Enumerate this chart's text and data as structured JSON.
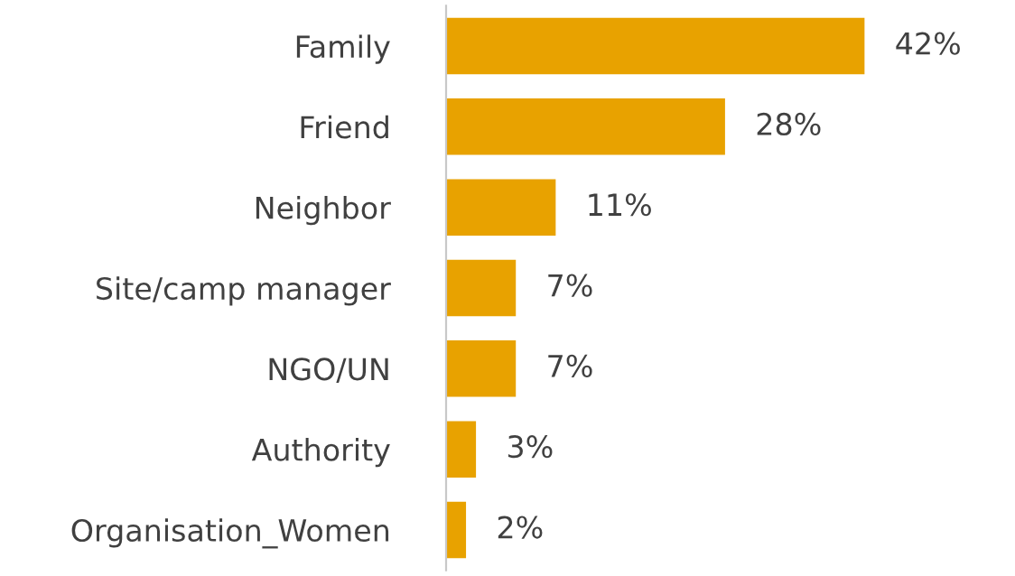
{
  "chart_data": {
    "type": "bar",
    "orientation": "horizontal",
    "categories": [
      "Family",
      "Friend",
      "Neighbor",
      "Site/camp manager",
      "NGO/UN",
      "Authority",
      "Organisation_Women"
    ],
    "values": [
      42,
      28,
      11,
      7,
      7,
      3,
      2
    ],
    "value_labels": [
      "42%",
      "28%",
      "11%",
      "7%",
      "7%",
      "3%",
      "2%"
    ],
    "color": "#e8a200",
    "grid": false,
    "legend": false
  }
}
